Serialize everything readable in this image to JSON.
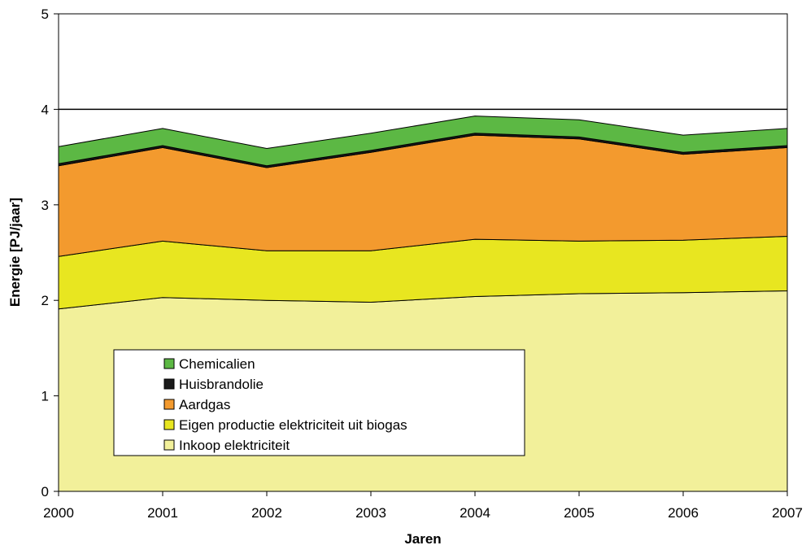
{
  "chart_data": {
    "type": "area",
    "stacked": true,
    "xlabel": "Jaren",
    "ylabel": "Energie [PJ/jaar]",
    "categories": [
      "2000",
      "2001",
      "2002",
      "2003",
      "2004",
      "2005",
      "2006",
      "2007"
    ],
    "ylim": [
      0,
      5
    ],
    "yticks": [
      "0",
      "1",
      "2",
      "3",
      "4",
      "5"
    ],
    "reference_line": 4,
    "grid": false,
    "legend_position": "inside-bottom-left",
    "series": [
      {
        "name": "Inkoop elektriciteit",
        "color": "#f2f09a",
        "values": [
          1.91,
          2.03,
          2.0,
          1.98,
          2.04,
          2.07,
          2.08,
          2.1
        ]
      },
      {
        "name": "Eigen productie elektriciteit uit biogas",
        "color": "#e8e620",
        "values": [
          0.55,
          0.59,
          0.52,
          0.54,
          0.6,
          0.55,
          0.55,
          0.57
        ]
      },
      {
        "name": "Aardgas",
        "color": "#f39a2e",
        "values": [
          0.95,
          0.98,
          0.87,
          1.03,
          1.09,
          1.07,
          0.9,
          0.93
        ]
      },
      {
        "name": "Huisbrandolie",
        "color": "#1a1a1a",
        "values": [
          0.02,
          0.02,
          0.02,
          0.02,
          0.02,
          0.02,
          0.02,
          0.02
        ]
      },
      {
        "name": "Chemicalien",
        "color": "#5cb844",
        "values": [
          0.18,
          0.18,
          0.18,
          0.18,
          0.18,
          0.18,
          0.18,
          0.18
        ]
      }
    ]
  }
}
